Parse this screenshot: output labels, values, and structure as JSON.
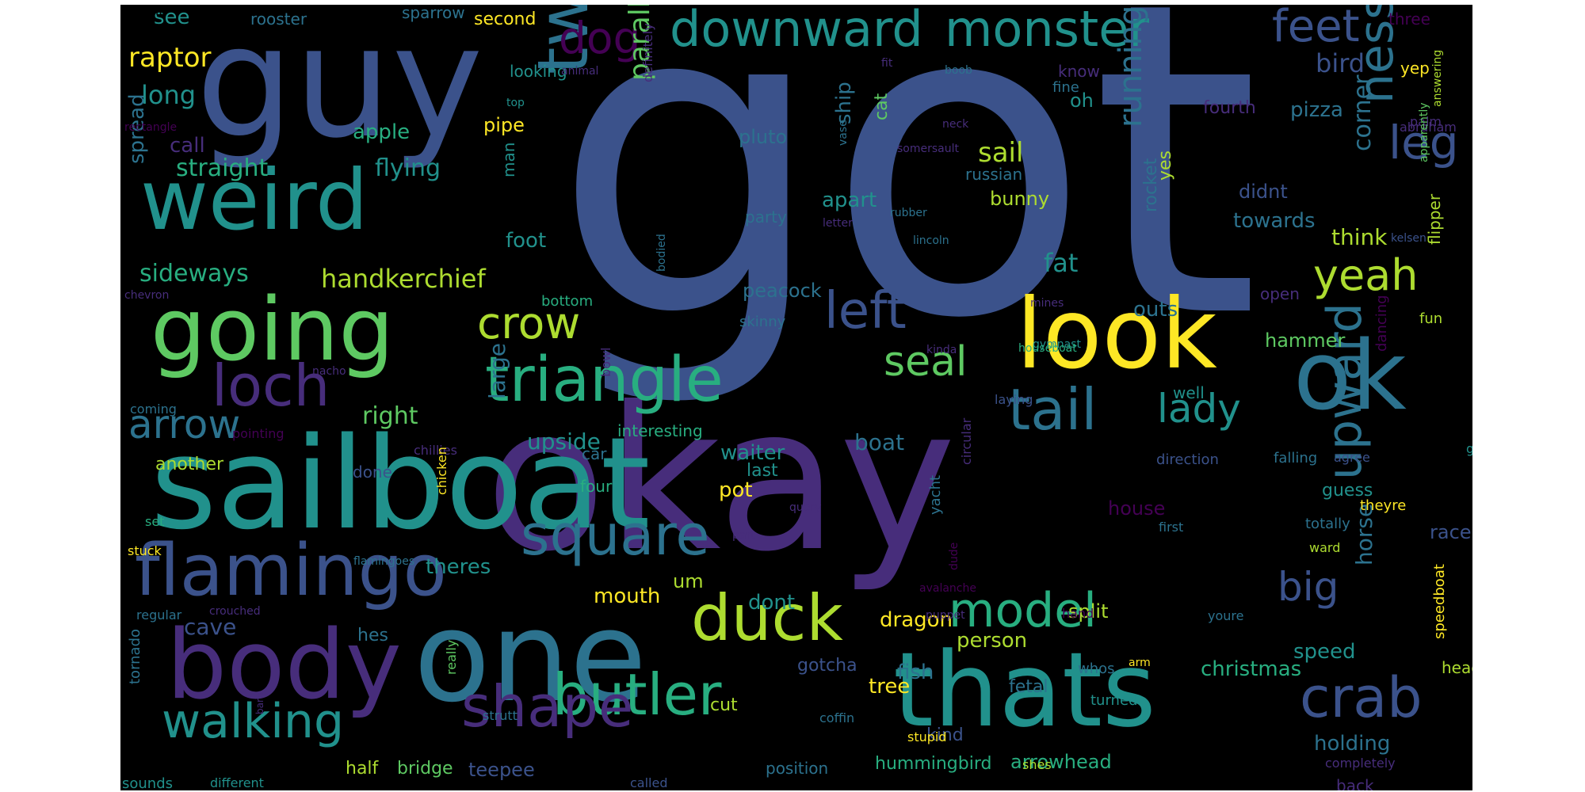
{
  "colors": {
    "background": "#000000",
    "page": "#ffffff",
    "palette": {
      "c1": "#440154",
      "c2": "#472d7b",
      "c3": "#3b528b",
      "c4": "#2c728e",
      "c5": "#21918c",
      "c6": "#28ae80",
      "c7": "#5ec962",
      "c8": "#addc30",
      "c9": "#fde725"
    }
  },
  "words": [
    {
      "text": "got",
      "color": "c3"
    },
    {
      "text": "okay",
      "color": "c2"
    },
    {
      "text": "sailboat",
      "color": "c5"
    },
    {
      "text": "guy",
      "color": "c3"
    },
    {
      "text": "one",
      "color": "c4"
    },
    {
      "text": "thats",
      "color": "c5"
    },
    {
      "text": "weird",
      "color": "c5"
    },
    {
      "text": "going",
      "color": "c7"
    },
    {
      "text": "body",
      "color": "c2"
    },
    {
      "text": "look",
      "color": "c9"
    },
    {
      "text": "ok",
      "color": "c4"
    },
    {
      "text": "flamingo",
      "color": "c3"
    },
    {
      "text": "two",
      "color": "c4"
    },
    {
      "text": "triangle",
      "color": "c6"
    },
    {
      "text": "square",
      "color": "c4"
    },
    {
      "text": "butler",
      "color": "c6"
    },
    {
      "text": "tail",
      "color": "c4"
    },
    {
      "text": "crab",
      "color": "c3"
    },
    {
      "text": "duck",
      "color": "c8"
    },
    {
      "text": "shape",
      "color": "c2"
    },
    {
      "text": "walking",
      "color": "c5"
    },
    {
      "text": "loch",
      "color": "c2"
    },
    {
      "text": "model",
      "color": "c6"
    },
    {
      "text": "upward",
      "color": "c4"
    },
    {
      "text": "monster",
      "color": "c5"
    },
    {
      "text": "downward",
      "color": "c5"
    },
    {
      "text": "ness",
      "color": "c4"
    },
    {
      "text": "leg",
      "color": "c3"
    },
    {
      "text": "left",
      "color": "c3"
    },
    {
      "text": "feet",
      "color": "c3"
    },
    {
      "text": "yeah",
      "color": "c8"
    },
    {
      "text": "lady",
      "color": "c5"
    },
    {
      "text": "arrow",
      "color": "c4"
    },
    {
      "text": "seal",
      "color": "c7"
    },
    {
      "text": "crow",
      "color": "c8"
    },
    {
      "text": "dog",
      "color": "c1"
    },
    {
      "text": "big",
      "color": "c3"
    },
    {
      "text": "running",
      "color": "c4"
    },
    {
      "text": "parallelogram",
      "color": "c7"
    },
    {
      "text": "handkerchief",
      "color": "c8"
    },
    {
      "text": "straight",
      "color": "c6"
    },
    {
      "text": "flying",
      "color": "c5"
    },
    {
      "text": "sideways",
      "color": "c6"
    },
    {
      "text": "fat",
      "color": "c5"
    },
    {
      "text": "raptor",
      "color": "c9"
    },
    {
      "text": "long",
      "color": "c5"
    },
    {
      "text": "apple",
      "color": "c6"
    },
    {
      "text": "call",
      "color": "c2"
    },
    {
      "text": "spread",
      "color": "c4"
    },
    {
      "text": "see",
      "color": "c5"
    },
    {
      "text": "rooster",
      "color": "c4"
    },
    {
      "text": "sparrow",
      "color": "c4"
    },
    {
      "text": "second",
      "color": "c9"
    },
    {
      "text": "looking",
      "color": "c5"
    },
    {
      "text": "pipe",
      "color": "c9"
    },
    {
      "text": "man",
      "color": "c5"
    },
    {
      "text": "foot",
      "color": "c5"
    },
    {
      "text": "bottom",
      "color": "c6"
    },
    {
      "text": "oh",
      "color": "c5"
    },
    {
      "text": "ship",
      "color": "c4"
    },
    {
      "text": "sail",
      "color": "c8"
    },
    {
      "text": "bunny",
      "color": "c8"
    },
    {
      "text": "russian",
      "color": "c4"
    },
    {
      "text": "apart",
      "color": "c5"
    },
    {
      "text": "pluto",
      "color": "c4"
    },
    {
      "text": "party",
      "color": "c4"
    },
    {
      "text": "peacock",
      "color": "c4"
    },
    {
      "text": "skinny",
      "color": "c4"
    },
    {
      "text": "cat",
      "color": "c7"
    },
    {
      "text": "bird",
      "color": "c3"
    },
    {
      "text": "pizza",
      "color": "c4"
    },
    {
      "text": "fourth",
      "color": "c2"
    },
    {
      "text": "didnt",
      "color": "c3"
    },
    {
      "text": "towards",
      "color": "c4"
    },
    {
      "text": "think",
      "color": "c8"
    },
    {
      "text": "corner",
      "color": "c4"
    },
    {
      "text": "yes",
      "color": "c8"
    },
    {
      "text": "rocket",
      "color": "c4"
    },
    {
      "text": "outs",
      "color": "c4"
    },
    {
      "text": "open",
      "color": "c2"
    },
    {
      "text": "hammer",
      "color": "c7"
    },
    {
      "text": "flipper",
      "color": "c8"
    },
    {
      "text": "fun",
      "color": "c8"
    },
    {
      "text": "three",
      "color": "c1"
    },
    {
      "text": "yep",
      "color": "c9"
    },
    {
      "text": "palm",
      "color": "c2"
    },
    {
      "text": "abraham",
      "color": "c2"
    },
    {
      "text": "answering",
      "color": "c8"
    },
    {
      "text": "apparently",
      "color": "c7"
    },
    {
      "text": "kelsen",
      "color": "c3"
    },
    {
      "text": "dancing",
      "color": "c1"
    },
    {
      "text": "right",
      "color": "c7"
    },
    {
      "text": "large",
      "color": "c4"
    },
    {
      "text": "upside",
      "color": "c5"
    },
    {
      "text": "waiter",
      "color": "c5"
    },
    {
      "text": "boat",
      "color": "c4"
    },
    {
      "text": "last",
      "color": "c5"
    },
    {
      "text": "pot",
      "color": "c9"
    },
    {
      "text": "another",
      "color": "c8"
    },
    {
      "text": "done",
      "color": "c3"
    },
    {
      "text": "theres",
      "color": "c5"
    },
    {
      "text": "mouth",
      "color": "c9"
    },
    {
      "text": "um",
      "color": "c8"
    },
    {
      "text": "dont",
      "color": "c5"
    },
    {
      "text": "dragon",
      "color": "c9"
    },
    {
      "text": "cave",
      "color": "c3"
    },
    {
      "text": "hes",
      "color": "c4"
    },
    {
      "text": "person",
      "color": "c8"
    },
    {
      "text": "christmas",
      "color": "c6"
    },
    {
      "text": "split",
      "color": "c8"
    },
    {
      "text": "speed",
      "color": "c5"
    },
    {
      "text": "horse",
      "color": "c4"
    },
    {
      "text": "race",
      "color": "c3"
    },
    {
      "text": "guess",
      "color": "c5"
    },
    {
      "text": "theyre",
      "color": "c9"
    },
    {
      "text": "totally",
      "color": "c4"
    },
    {
      "text": "ward",
      "color": "c8"
    },
    {
      "text": "speedboat",
      "color": "c9"
    },
    {
      "text": "fish",
      "color": "c4"
    },
    {
      "text": "tree",
      "color": "c9"
    },
    {
      "text": "cut",
      "color": "c8"
    },
    {
      "text": "gotcha",
      "color": "c3"
    },
    {
      "text": "kind",
      "color": "c3"
    },
    {
      "text": "hummingbird",
      "color": "c6"
    },
    {
      "text": "arrowhead",
      "color": "c6"
    },
    {
      "text": "holding",
      "color": "c4"
    },
    {
      "text": "back",
      "color": "c2"
    },
    {
      "text": "completely",
      "color": "c2"
    },
    {
      "text": "head",
      "color": "c8"
    },
    {
      "text": "half",
      "color": "c8"
    },
    {
      "text": "bridge",
      "color": "c7"
    },
    {
      "text": "teepee",
      "color": "c3"
    },
    {
      "text": "position",
      "color": "c4"
    },
    {
      "text": "sounds",
      "color": "c5"
    },
    {
      "text": "different",
      "color": "c5"
    },
    {
      "text": "called",
      "color": "c3"
    },
    {
      "text": "tornado",
      "color": "c4"
    },
    {
      "text": "regular",
      "color": "c4"
    },
    {
      "text": "crouched",
      "color": "c2"
    },
    {
      "text": "really",
      "color": "c7"
    },
    {
      "text": "strutt",
      "color": "c4"
    },
    {
      "text": "barn",
      "color": "c2"
    },
    {
      "text": "coffin",
      "color": "c4"
    },
    {
      "text": "stupid",
      "color": "c9"
    },
    {
      "text": "shes",
      "color": "c8"
    },
    {
      "text": "fetal",
      "color": "c4"
    },
    {
      "text": "whos",
      "color": "c4"
    },
    {
      "text": "turned",
      "color": "c5"
    },
    {
      "text": "arm",
      "color": "c9"
    },
    {
      "text": "youre",
      "color": "c4"
    },
    {
      "text": "hand",
      "color": "c1"
    },
    {
      "text": "puppet",
      "color": "c2"
    },
    {
      "text": "avalanche",
      "color": "c1"
    },
    {
      "text": "dude",
      "color": "c1"
    },
    {
      "text": "part",
      "color": "c2"
    },
    {
      "text": "query",
      "color": "c2"
    },
    {
      "text": "yacht",
      "color": "c4"
    },
    {
      "text": "car",
      "color": "c4"
    },
    {
      "text": "interesting",
      "color": "c6"
    },
    {
      "text": "four",
      "color": "c6"
    },
    {
      "text": "chillies",
      "color": "c2"
    },
    {
      "text": "chicken",
      "color": "c9"
    },
    {
      "text": "flamingoes",
      "color": "c4"
    },
    {
      "text": "set",
      "color": "c6"
    },
    {
      "text": "stuck",
      "color": "c9"
    },
    {
      "text": "pointing",
      "color": "c1"
    },
    {
      "text": "coming",
      "color": "c4"
    },
    {
      "text": "nacho",
      "color": "c2"
    },
    {
      "text": "bowl",
      "color": "c2"
    },
    {
      "text": "kinda",
      "color": "c2"
    },
    {
      "text": "laying",
      "color": "c3"
    },
    {
      "text": "gymnast",
      "color": "c5"
    },
    {
      "text": "circular",
      "color": "c2"
    },
    {
      "text": "direction",
      "color": "c3"
    },
    {
      "text": "falling",
      "color": "c4"
    },
    {
      "text": "agree",
      "color": "c3"
    },
    {
      "text": "gets",
      "color": "c5"
    },
    {
      "text": "house",
      "color": "c1"
    },
    {
      "text": "first",
      "color": "c4"
    },
    {
      "text": "well",
      "color": "c5"
    },
    {
      "text": "houseboat",
      "color": "c6"
    },
    {
      "text": "mines",
      "color": "c2"
    },
    {
      "text": "lincoln",
      "color": "c4"
    },
    {
      "text": "rubber",
      "color": "c4"
    },
    {
      "text": "letter",
      "color": "c2"
    },
    {
      "text": "bodied",
      "color": "c4"
    },
    {
      "text": "definitely",
      "color": "c2"
    },
    {
      "text": "top",
      "color": "c5"
    },
    {
      "text": "rectangle",
      "color": "c1"
    },
    {
      "text": "boob",
      "color": "c4"
    },
    {
      "text": "animal",
      "color": "c2"
    },
    {
      "text": "chevron",
      "color": "c2"
    },
    {
      "text": "fit",
      "color": "c2"
    },
    {
      "text": "somersault",
      "color": "c2"
    },
    {
      "text": "neck",
      "color": "c2"
    },
    {
      "text": "vase",
      "color": "c4"
    },
    {
      "text": "fine",
      "color": "c4"
    },
    {
      "text": "know",
      "color": "c2"
    },
    {
      "text": "doesnt",
      "color": "c4"
    },
    {
      "text": "third",
      "color": "c5"
    }
  ]
}
